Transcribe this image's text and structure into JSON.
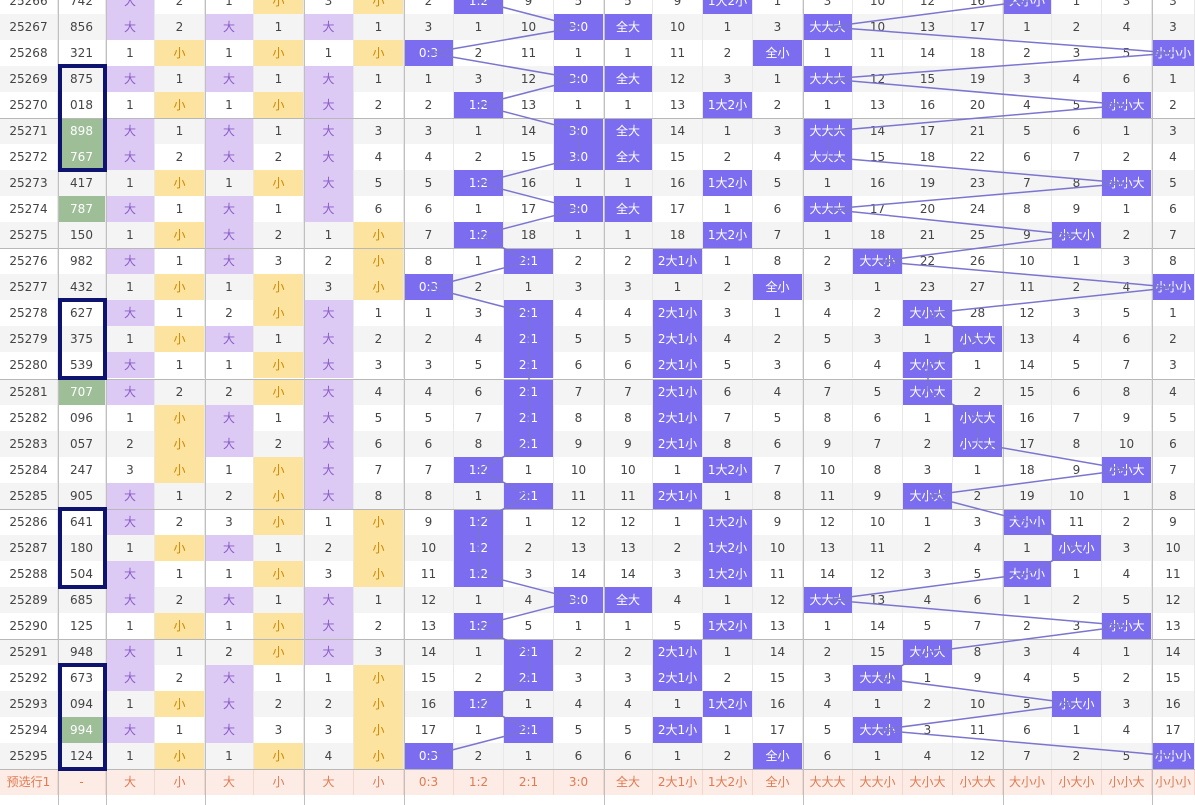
{
  "table": {
    "rows": [
      {
        "id": "25266",
        "num": "742",
        "c": [
          "大",
          "2",
          "1",
          "小",
          "3",
          "小"
        ],
        "sm": [
          "2",
          "1:2",
          "9",
          "5",
          "5",
          "9",
          "1大2小",
          "1"
        ],
        "pt": [
          "3",
          "10",
          "12",
          "16",
          "大小小",
          "1",
          "3",
          "3"
        ]
      },
      {
        "id": "25267",
        "num": "856",
        "c": [
          "大",
          "2",
          "大",
          "1",
          "大",
          "1"
        ],
        "sm": [
          "3",
          "1",
          "10",
          "3:0",
          "全大",
          "10",
          "1",
          "3"
        ],
        "pt": [
          "大大大",
          "10",
          "13",
          "17",
          "1",
          "2",
          "4",
          "3"
        ]
      },
      {
        "id": "25268",
        "num": "321",
        "c": [
          "1",
          "小",
          "1",
          "小",
          "1",
          "小"
        ],
        "sm": [
          "0:3",
          "2",
          "11",
          "1",
          "1",
          "11",
          "2",
          "全小"
        ],
        "pt": [
          "1",
          "11",
          "14",
          "18",
          "2",
          "3",
          "5",
          "小小小"
        ]
      },
      {
        "id": "25269",
        "num": "875",
        "c": [
          "大",
          "1",
          "大",
          "1",
          "大",
          "1"
        ],
        "sm": [
          "1",
          "3",
          "12",
          "3:0",
          "全大",
          "12",
          "3",
          "1"
        ],
        "pt": [
          "大大大",
          "12",
          "15",
          "19",
          "3",
          "4",
          "6",
          "1"
        ]
      },
      {
        "id": "25270",
        "num": "018",
        "c": [
          "1",
          "小",
          "1",
          "小",
          "大",
          "2"
        ],
        "sm": [
          "2",
          "1:2",
          "13",
          "1",
          "1",
          "13",
          "1大2小",
          "2"
        ],
        "pt": [
          "1",
          "13",
          "16",
          "20",
          "4",
          "5",
          "小小大",
          "2"
        ]
      },
      {
        "id": "25271",
        "num": "898",
        "c": [
          "大",
          "1",
          "大",
          "1",
          "大",
          "3"
        ],
        "sm": [
          "3",
          "1",
          "14",
          "3:0",
          "全大",
          "14",
          "1",
          "3"
        ],
        "pt": [
          "大大大",
          "14",
          "17",
          "21",
          "5",
          "6",
          "1",
          "3"
        ]
      },
      {
        "id": "25272",
        "num": "767",
        "c": [
          "大",
          "2",
          "大",
          "2",
          "大",
          "4"
        ],
        "sm": [
          "4",
          "2",
          "15",
          "3:0",
          "全大",
          "15",
          "2",
          "4"
        ],
        "pt": [
          "大大大",
          "15",
          "18",
          "22",
          "6",
          "7",
          "2",
          "4"
        ]
      },
      {
        "id": "25273",
        "num": "417",
        "c": [
          "1",
          "小",
          "1",
          "小",
          "大",
          "5"
        ],
        "sm": [
          "5",
          "1:2",
          "16",
          "1",
          "1",
          "16",
          "1大2小",
          "5"
        ],
        "pt": [
          "1",
          "16",
          "19",
          "23",
          "7",
          "8",
          "小小大",
          "5"
        ]
      },
      {
        "id": "25274",
        "num": "787",
        "c": [
          "大",
          "1",
          "大",
          "1",
          "大",
          "6"
        ],
        "sm": [
          "6",
          "1",
          "17",
          "3:0",
          "全大",
          "17",
          "1",
          "6"
        ],
        "pt": [
          "大大大",
          "17",
          "20",
          "24",
          "8",
          "9",
          "1",
          "6"
        ]
      },
      {
        "id": "25275",
        "num": "150",
        "c": [
          "1",
          "小",
          "大",
          "2",
          "1",
          "小"
        ],
        "sm": [
          "7",
          "1:2",
          "18",
          "1",
          "1",
          "18",
          "1大2小",
          "7"
        ],
        "pt": [
          "1",
          "18",
          "21",
          "25",
          "9",
          "小大小",
          "2",
          "7"
        ]
      },
      {
        "id": "25276",
        "num": "982",
        "c": [
          "大",
          "1",
          "大",
          "3",
          "2",
          "小"
        ],
        "sm": [
          "8",
          "1",
          "2:1",
          "2",
          "2",
          "2大1小",
          "1",
          "8"
        ],
        "pt": [
          "2",
          "大大小",
          "22",
          "26",
          "10",
          "1",
          "3",
          "8"
        ]
      },
      {
        "id": "25277",
        "num": "432",
        "c": [
          "1",
          "小",
          "1",
          "小",
          "3",
          "小"
        ],
        "sm": [
          "0:3",
          "2",
          "1",
          "3",
          "3",
          "1",
          "2",
          "全小"
        ],
        "pt": [
          "3",
          "1",
          "23",
          "27",
          "11",
          "2",
          "4",
          "小小小"
        ]
      },
      {
        "id": "25278",
        "num": "627",
        "c": [
          "大",
          "1",
          "2",
          "小",
          "大",
          "1"
        ],
        "sm": [
          "1",
          "3",
          "2:1",
          "4",
          "4",
          "2大1小",
          "3",
          "1"
        ],
        "pt": [
          "4",
          "2",
          "大小大",
          "28",
          "12",
          "3",
          "5",
          "1"
        ]
      },
      {
        "id": "25279",
        "num": "375",
        "c": [
          "1",
          "小",
          "大",
          "1",
          "大",
          "2"
        ],
        "sm": [
          "2",
          "4",
          "2:1",
          "5",
          "5",
          "2大1小",
          "4",
          "2"
        ],
        "pt": [
          "5",
          "3",
          "1",
          "小大大",
          "13",
          "4",
          "6",
          "2"
        ]
      },
      {
        "id": "25280",
        "num": "539",
        "c": [
          "大",
          "1",
          "1",
          "小",
          "大",
          "3"
        ],
        "sm": [
          "3",
          "5",
          "2:1",
          "6",
          "6",
          "2大1小",
          "5",
          "3"
        ],
        "pt": [
          "6",
          "4",
          "大小大",
          "1",
          "14",
          "5",
          "7",
          "3"
        ]
      },
      {
        "id": "25281",
        "num": "707",
        "c": [
          "大",
          "2",
          "2",
          "小",
          "大",
          "4"
        ],
        "sm": [
          "4",
          "6",
          "2:1",
          "7",
          "7",
          "2大1小",
          "6",
          "4"
        ],
        "pt": [
          "7",
          "5",
          "大小大",
          "2",
          "15",
          "6",
          "8",
          "4"
        ]
      },
      {
        "id": "25282",
        "num": "096",
        "c": [
          "1",
          "小",
          "大",
          "1",
          "大",
          "5"
        ],
        "sm": [
          "5",
          "7",
          "2:1",
          "8",
          "8",
          "2大1小",
          "7",
          "5"
        ],
        "pt": [
          "8",
          "6",
          "1",
          "小大大",
          "16",
          "7",
          "9",
          "5"
        ]
      },
      {
        "id": "25283",
        "num": "057",
        "c": [
          "2",
          "小",
          "大",
          "2",
          "大",
          "6"
        ],
        "sm": [
          "6",
          "8",
          "2:1",
          "9",
          "9",
          "2大1小",
          "8",
          "6"
        ],
        "pt": [
          "9",
          "7",
          "2",
          "小大大",
          "17",
          "8",
          "10",
          "6"
        ]
      },
      {
        "id": "25284",
        "num": "247",
        "c": [
          "3",
          "小",
          "1",
          "小",
          "大",
          "7"
        ],
        "sm": [
          "7",
          "1:2",
          "1",
          "10",
          "10",
          "1",
          "1大2小",
          "7"
        ],
        "pt": [
          "10",
          "8",
          "3",
          "1",
          "18",
          "9",
          "小小大",
          "7"
        ]
      },
      {
        "id": "25285",
        "num": "905",
        "c": [
          "大",
          "1",
          "2",
          "小",
          "大",
          "8"
        ],
        "sm": [
          "8",
          "1",
          "2:1",
          "11",
          "11",
          "2大1小",
          "1",
          "8"
        ],
        "pt": [
          "11",
          "9",
          "大小大",
          "2",
          "19",
          "10",
          "1",
          "8"
        ]
      },
      {
        "id": "25286",
        "num": "641",
        "c": [
          "大",
          "2",
          "3",
          "小",
          "1",
          "小"
        ],
        "sm": [
          "9",
          "1:2",
          "1",
          "12",
          "12",
          "1",
          "1大2小",
          "9"
        ],
        "pt": [
          "12",
          "10",
          "1",
          "3",
          "大小小",
          "11",
          "2",
          "9"
        ]
      },
      {
        "id": "25287",
        "num": "180",
        "c": [
          "1",
          "小",
          "大",
          "1",
          "2",
          "小"
        ],
        "sm": [
          "10",
          "1:2",
          "2",
          "13",
          "13",
          "2",
          "1大2小",
          "10"
        ],
        "pt": [
          "13",
          "11",
          "2",
          "4",
          "1",
          "小大小",
          "3",
          "10"
        ]
      },
      {
        "id": "25288",
        "num": "504",
        "c": [
          "大",
          "1",
          "1",
          "小",
          "3",
          "小"
        ],
        "sm": [
          "11",
          "1:2",
          "3",
          "14",
          "14",
          "3",
          "1大2小",
          "11"
        ],
        "pt": [
          "14",
          "12",
          "3",
          "5",
          "大小小",
          "1",
          "4",
          "11"
        ]
      },
      {
        "id": "25289",
        "num": "685",
        "c": [
          "大",
          "2",
          "大",
          "1",
          "大",
          "1"
        ],
        "sm": [
          "12",
          "1",
          "4",
          "3:0",
          "全大",
          "4",
          "1",
          "12"
        ],
        "pt": [
          "大大大",
          "13",
          "4",
          "6",
          "1",
          "2",
          "5",
          "12"
        ]
      },
      {
        "id": "25290",
        "num": "125",
        "c": [
          "1",
          "小",
          "1",
          "小",
          "大",
          "2"
        ],
        "sm": [
          "13",
          "1:2",
          "5",
          "1",
          "1",
          "5",
          "1大2小",
          "13"
        ],
        "pt": [
          "1",
          "14",
          "5",
          "7",
          "2",
          "3",
          "小小大",
          "13"
        ]
      },
      {
        "id": "25291",
        "num": "948",
        "c": [
          "大",
          "1",
          "2",
          "小",
          "大",
          "3"
        ],
        "sm": [
          "14",
          "1",
          "2:1",
          "2",
          "2",
          "2大1小",
          "1",
          "14"
        ],
        "pt": [
          "2",
          "15",
          "大小大",
          "8",
          "3",
          "4",
          "1",
          "14"
        ]
      },
      {
        "id": "25292",
        "num": "673",
        "c": [
          "大",
          "2",
          "大",
          "1",
          "1",
          "小"
        ],
        "sm": [
          "15",
          "2",
          "2:1",
          "3",
          "3",
          "2大1小",
          "2",
          "15"
        ],
        "pt": [
          "3",
          "大大小",
          "1",
          "9",
          "4",
          "5",
          "2",
          "15"
        ]
      },
      {
        "id": "25293",
        "num": "094",
        "c": [
          "1",
          "小",
          "大",
          "2",
          "2",
          "小"
        ],
        "sm": [
          "16",
          "1:2",
          "1",
          "4",
          "4",
          "1",
          "1大2小",
          "16"
        ],
        "pt": [
          "4",
          "1",
          "2",
          "10",
          "5",
          "小大小",
          "3",
          "16"
        ]
      },
      {
        "id": "25294",
        "num": "994",
        "c": [
          "大",
          "1",
          "大",
          "3",
          "3",
          "小"
        ],
        "sm": [
          "17",
          "1",
          "2:1",
          "5",
          "5",
          "2大1小",
          "1",
          "17"
        ],
        "pt": [
          "5",
          "大大小",
          "3",
          "11",
          "6",
          "1",
          "4",
          "17"
        ]
      },
      {
        "id": "25295",
        "num": "124",
        "c": [
          "1",
          "小",
          "1",
          "小",
          "4",
          "小"
        ],
        "sm": [
          "0:3",
          "2",
          "1",
          "6",
          "6",
          "1",
          "2",
          "全小"
        ],
        "pt": [
          "6",
          "1",
          "4",
          "12",
          "7",
          "2",
          "5",
          "小小小"
        ]
      }
    ],
    "footer": {
      "label": "预选行1",
      "num": "-",
      "c": [
        "大",
        "小",
        "大",
        "小",
        "大",
        "小"
      ],
      "sm": [
        "0:3",
        "1:2",
        "2:1",
        "3:0",
        "全大",
        "2大1小",
        "1大2小",
        "全小"
      ],
      "pt": [
        "大大大",
        "大大小",
        "大小大",
        "小大大",
        "大小小",
        "小大小",
        "小小大",
        "小小小"
      ]
    }
  },
  "colors": {
    "hit": "#7b6cf0",
    "big": "#dcc9f4",
    "small": "#fde3a0",
    "green": "#9dbe97",
    "box": "#0e1370",
    "line": "#7b75d0",
    "footer": "#fdece6"
  }
}
